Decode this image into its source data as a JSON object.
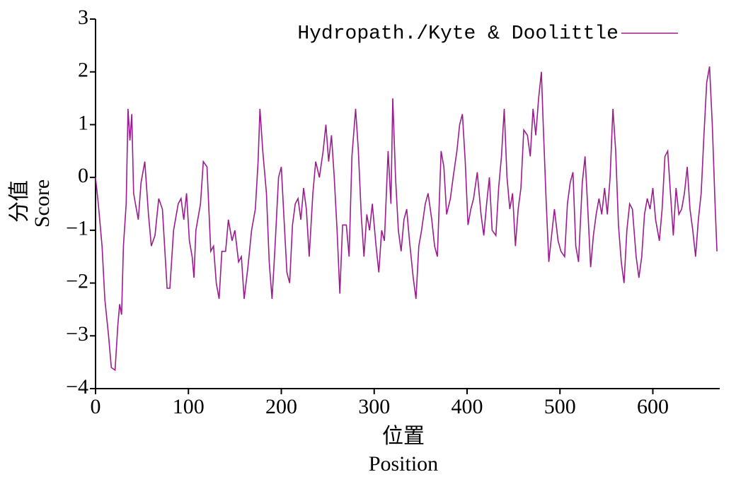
{
  "chart_data": {
    "type": "line",
    "series": [
      {
        "name": "Hydropath./Kyte & Doolittle",
        "color": "#9c1b90",
        "x": [
          0,
          3,
          7,
          10,
          14,
          17,
          21,
          24,
          26,
          28,
          30,
          33,
          35,
          37,
          39,
          41,
          43,
          46,
          49,
          53,
          57,
          60,
          64,
          68,
          72,
          77,
          80,
          84,
          89,
          92,
          95,
          98,
          101,
          104,
          106,
          108,
          113,
          116,
          120,
          124,
          127,
          130,
          133,
          136,
          140,
          143,
          147,
          150,
          154,
          157,
          160,
          164,
          168,
          172,
          175,
          177,
          180,
          184,
          187,
          190,
          193,
          197,
          200,
          203,
          206,
          209,
          212,
          215,
          218,
          221,
          224,
          227,
          230,
          234,
          237,
          241,
          245,
          248,
          251,
          254,
          257,
          260,
          263,
          266,
          270,
          273,
          276,
          280,
          283,
          286,
          289,
          292,
          295,
          298,
          302,
          305,
          308,
          311,
          315,
          318,
          320,
          323,
          326,
          329,
          332,
          335,
          338,
          342,
          345,
          348,
          351,
          355,
          358,
          362,
          365,
          368,
          372,
          375,
          378,
          382,
          385,
          389,
          392,
          395,
          398,
          401,
          404,
          407,
          411,
          415,
          418,
          421,
          424,
          427,
          431,
          434,
          437,
          440,
          443,
          446,
          449,
          452,
          455,
          458,
          461,
          465,
          468,
          471,
          474,
          477,
          480,
          482,
          485,
          488,
          491,
          494,
          498,
          501,
          505,
          508,
          511,
          514,
          517,
          520,
          524,
          527,
          530,
          533,
          536,
          539,
          542,
          545,
          548,
          551,
          554,
          557,
          560,
          563,
          566,
          569,
          572,
          575,
          578,
          582,
          585,
          588,
          591,
          594,
          597,
          600,
          603,
          607,
          610,
          613,
          616,
          619,
          622,
          625,
          628,
          631,
          634,
          637,
          640,
          643,
          646,
          649,
          652,
          655,
          658,
          661,
          664,
          667,
          669
        ],
        "values": [
          0,
          -0.5,
          -1.3,
          -2.3,
          -3.0,
          -3.6,
          -3.65,
          -2.8,
          -2.4,
          -2.6,
          -1.3,
          -0.5,
          1.3,
          0.7,
          1.2,
          -0.3,
          -0.5,
          -0.8,
          -0.1,
          0.3,
          -0.7,
          -1.3,
          -1.1,
          -0.4,
          -0.6,
          -2.1,
          -2.1,
          -1.0,
          -0.5,
          -0.4,
          -0.8,
          -0.3,
          -1.2,
          -1.5,
          -1.9,
          -1.0,
          -0.5,
          0.3,
          0.2,
          -1.4,
          -1.3,
          -2.0,
          -2.3,
          -1.4,
          -1.4,
          -0.8,
          -1.2,
          -1.0,
          -1.6,
          -1.5,
          -2.3,
          -1.7,
          -1.0,
          -0.6,
          0.3,
          1.3,
          0.5,
          -0.3,
          -1.6,
          -2.3,
          -1.4,
          0.0,
          0.2,
          -0.8,
          -1.8,
          -2.0,
          -0.9,
          -0.5,
          -0.4,
          -0.8,
          -0.2,
          -0.6,
          -1.5,
          -0.3,
          0.3,
          0.0,
          0.5,
          1.0,
          0.3,
          0.8,
          0.0,
          -1.0,
          -2.2,
          -0.9,
          -0.9,
          -1.5,
          0.4,
          1.3,
          0.5,
          -0.7,
          -1.5,
          -0.7,
          -1.0,
          -0.5,
          -1.3,
          -1.8,
          -1.0,
          -1.2,
          0.5,
          -0.5,
          1.5,
          0.0,
          -1.0,
          -1.4,
          -0.8,
          -0.6,
          -1.2,
          -1.9,
          -2.3,
          -1.3,
          -1.0,
          -0.5,
          -0.3,
          -0.8,
          -1.3,
          -1.5,
          0.5,
          0.2,
          -0.7,
          -0.4,
          0.0,
          0.5,
          1.0,
          1.2,
          0.3,
          -0.9,
          -0.6,
          -0.4,
          0.1,
          -0.7,
          -1.1,
          -0.5,
          0.0,
          -1.0,
          -1.1,
          -0.2,
          0.4,
          1.3,
          0.0,
          -0.6,
          -0.3,
          -1.3,
          -0.6,
          -0.2,
          0.9,
          0.8,
          0.4,
          1.3,
          0.8,
          1.5,
          2.0,
          1.0,
          -0.4,
          -1.6,
          -1.1,
          -0.6,
          -1.2,
          -1.4,
          -1.5,
          -0.5,
          -0.1,
          0.1,
          -1.3,
          -1.6,
          -0.1,
          0.4,
          -0.6,
          -1.7,
          -1.1,
          -0.7,
          -0.4,
          -0.7,
          -0.2,
          -0.7,
          0.0,
          1.3,
          0.5,
          -0.9,
          -1.6,
          -2.0,
          -1.0,
          -0.5,
          -0.6,
          -1.5,
          -1.9,
          -1.5,
          -0.7,
          -0.4,
          -0.6,
          -0.2,
          -0.8,
          -1.2,
          -0.6,
          0.4,
          0.5,
          -0.3,
          -1.1,
          -0.2,
          -0.7,
          -0.6,
          -0.3,
          0.2,
          -0.6,
          -1.0,
          -1.5,
          -0.8,
          -0.3,
          0.8,
          1.8,
          2.1,
          1.0,
          -0.5,
          -1.4
        ]
      }
    ],
    "ylabel": [
      "分值",
      "Score"
    ],
    "xlabel": [
      "位置",
      "Position"
    ],
    "xlim": [
      0,
      672
    ],
    "xticks": [
      0,
      100,
      200,
      300,
      400,
      500,
      600
    ],
    "ylim": [
      -4,
      3
    ],
    "yticks": [
      {
        "value": -4,
        "label": "−4"
      },
      {
        "value": -3,
        "label": "−3"
      },
      {
        "value": -2,
        "label": "−2"
      },
      {
        "value": -1,
        "label": "−1"
      },
      0,
      1,
      2,
      3
    ],
    "legend": "top-right",
    "grid": false
  }
}
